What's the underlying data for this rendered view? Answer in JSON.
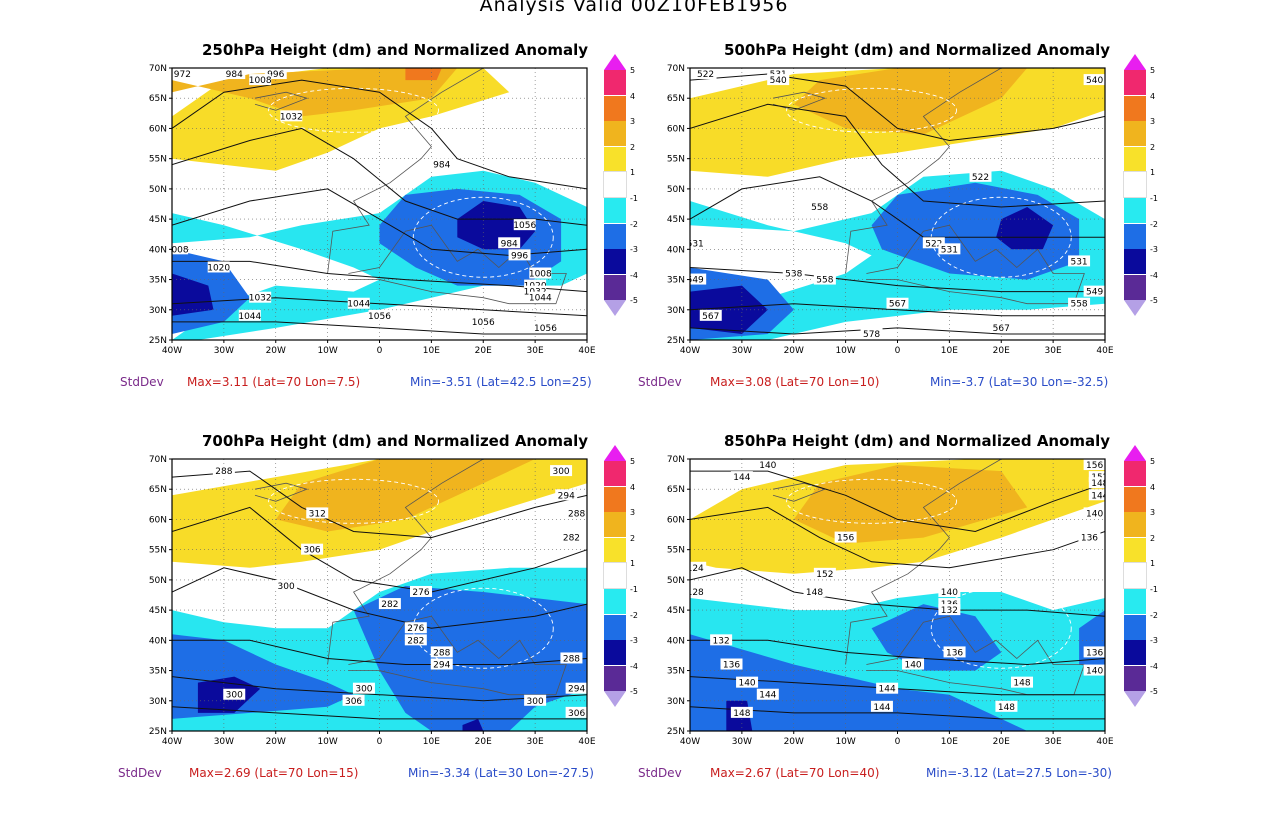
{
  "title": "Analysis Valid 00Z10FEB1956",
  "lat_labels": [
    "70N",
    "65N",
    "60N",
    "55N",
    "50N",
    "45N",
    "40N",
    "35N",
    "30N",
    "25N"
  ],
  "lon_labels": [
    "40W",
    "30W",
    "20W",
    "10W",
    "0",
    "10E",
    "20E",
    "30E",
    "40E"
  ],
  "colorbar": {
    "levels": [
      "5",
      "4",
      "3",
      "2",
      "1",
      "-1",
      "-2",
      "-3",
      "-4",
      "-5"
    ],
    "colors": [
      "#e81ef0",
      "#f0286e",
      "#f0781e",
      "#f0b41e",
      "#f8e12a",
      "#ffffff",
      "#28eaf0",
      "#1e6ee6",
      "#0a0a9c",
      "#5a2a96",
      "#b4a0e6"
    ]
  },
  "fill_colors": {
    "y1": "#f8dc28",
    "y2": "#f0b41e",
    "o3": "#f0781e",
    "c1": "#28e6f0",
    "b2": "#1e6ee6",
    "n3": "#0a0a9c"
  },
  "panels": [
    {
      "id": "p250",
      "title": "250hPa Height (dm) and Normalized Anomaly",
      "stddev": "StdDev",
      "max": "Max=3.11 (Lat=70 Lon=7.5)",
      "min": "Min=-3.51 (Lat=42.5 Lon=25)",
      "contour_labels": [
        "972",
        "984",
        "996",
        "1008",
        "1032",
        "984",
        "1008",
        "1020",
        "1032",
        "1044",
        "1044",
        "1056",
        "1056",
        "1056",
        "984",
        "996",
        "1008",
        "1020",
        "1032",
        "1044",
        "1056"
      ]
    },
    {
      "id": "p500",
      "title": "500hPa Height (dm) and Normalized Anomaly",
      "stddev": "StdDev",
      "max": "Max=3.08 (Lat=70 Lon=10)",
      "min": "Min=-3.7 (Lat=30 Lon=-32.5)",
      "contour_labels": [
        "522",
        "531",
        "540",
        "540",
        "531",
        "549",
        "558",
        "558",
        "522",
        "522",
        "531",
        "531",
        "538",
        "567",
        "567",
        "567",
        "549",
        "558",
        "578"
      ]
    },
    {
      "id": "p700",
      "title": "700hPa Height (dm) and Normalized Anomaly",
      "stddev": "StdDev",
      "max": "Max=2.69 (Lat=70 Lon=15)",
      "min": "Min=-3.34 (Lat=30 Lon=-27.5)",
      "contour_labels": [
        "288",
        "300",
        "294",
        "288",
        "282",
        "312",
        "306",
        "300",
        "276",
        "282",
        "276",
        "282",
        "288",
        "294",
        "288",
        "294",
        "300",
        "300",
        "306",
        "300",
        "306"
      ]
    },
    {
      "id": "p850",
      "title": "850hPa Height (dm) and Normalized Anomaly",
      "stddev": "StdDev",
      "max": "Max=2.67 (Lat=70 Lon=40)",
      "min": "Min=-3.12 (Lat=27.5 Lon=-30)",
      "contour_labels": [
        "140",
        "144",
        "156",
        "152",
        "148",
        "144",
        "140",
        "136",
        "124",
        "128",
        "132",
        "136",
        "140",
        "144",
        "148",
        "156",
        "152",
        "148",
        "140",
        "136",
        "132",
        "136",
        "140",
        "144",
        "144",
        "148",
        "148",
        "136",
        "140"
      ]
    }
  ]
}
